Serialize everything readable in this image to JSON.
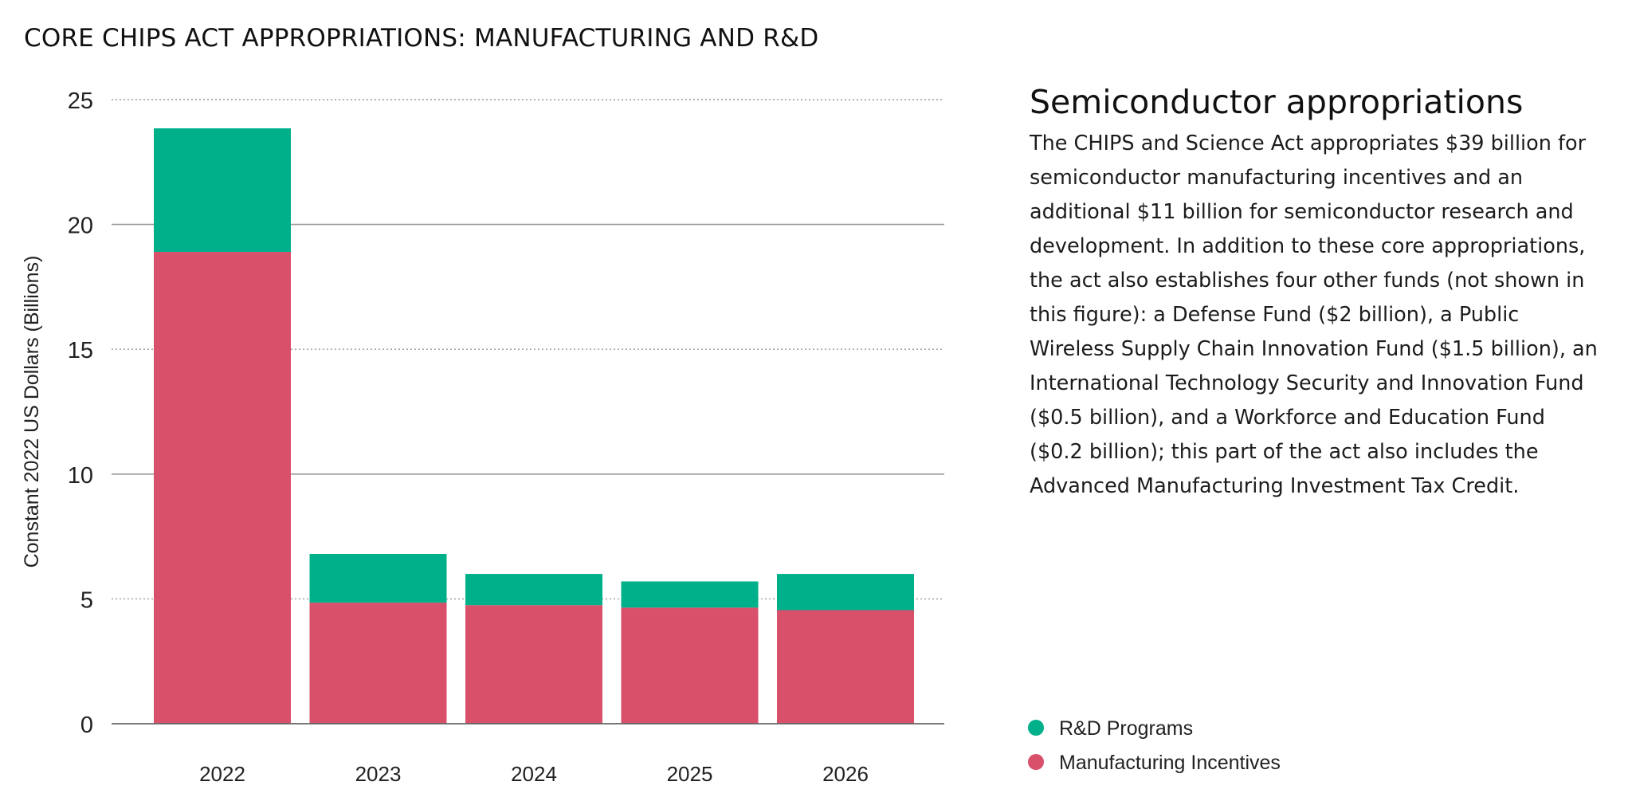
{
  "page_title": "CORE CHIPS ACT APPROPRIATIONS: MANUFACTURING AND R&D",
  "side_panel": {
    "heading": "Semiconductor appropriations",
    "body": "The CHIPS and Science Act appropriates $39 billion for semiconductor manufacturing incentives and an additional $11 billion for semiconductor research and development. In addition to these core appropriations, the act also establishes four other funds (not shown in this figure): a Defense Fund ($2 billion), a Public Wireless Supply Chain Innovation Fund ($1.5 billion), an International Technology Security and Innovation Fund ($0.5 billion), and a Workforce and Education Fund ($0.2 billion); this part of the act also includes the Advanced Manufacturing Investment Tax Credit."
  },
  "colors": {
    "rd": "#00b08a",
    "manufacturing": "#d9506a",
    "gridline": "#9a9a9a",
    "axis": "#666666"
  },
  "chart_data": {
    "type": "bar",
    "stacked": true,
    "categories": [
      "2022",
      "2023",
      "2024",
      "2025",
      "2026"
    ],
    "series": [
      {
        "name": "Manufacturing Incentives",
        "values": [
          18.9,
          4.85,
          4.75,
          4.65,
          4.55
        ]
      },
      {
        "name": "R&D Programs",
        "values": [
          4.95,
          1.95,
          1.25,
          1.05,
          1.45
        ]
      }
    ],
    "title": "",
    "xlabel": "",
    "ylabel": "Constant 2022 US Dollars (Billions)",
    "ylim": [
      0,
      25
    ],
    "yticks": [
      0,
      5,
      10,
      15,
      20,
      25
    ],
    "grid": true,
    "legend": [
      {
        "name": "R&D Programs",
        "color": "#00b08a"
      },
      {
        "name": "Manufacturing Incentives",
        "color": "#d9506a"
      }
    ],
    "legend_position": "bottom-right"
  }
}
